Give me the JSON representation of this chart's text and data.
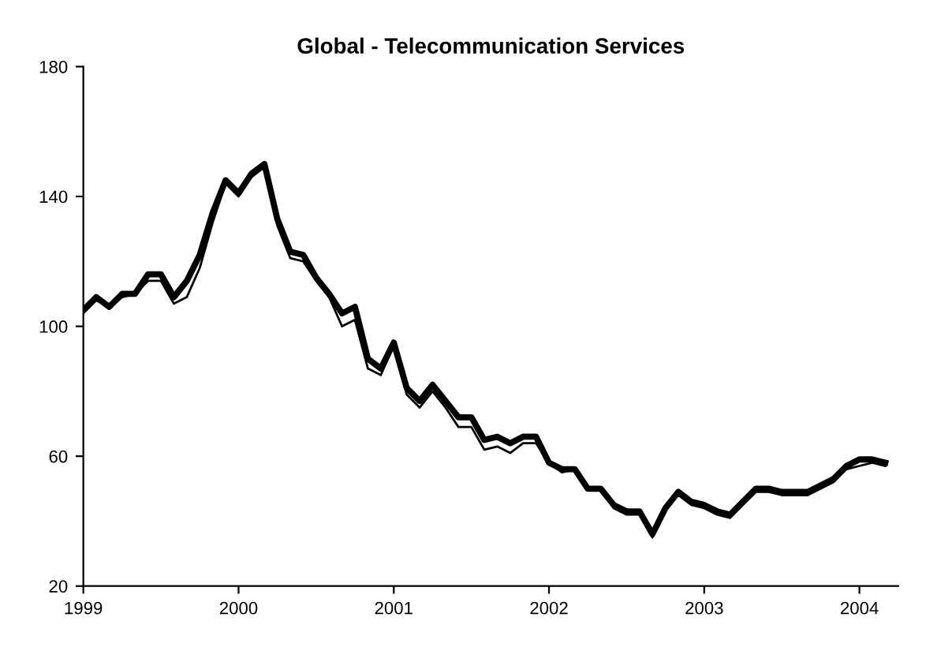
{
  "chart_data": {
    "type": "line",
    "title": "Global - Telecommunication Services",
    "x": [
      "1999-01",
      "1999-02",
      "1999-03",
      "1999-04",
      "1999-05",
      "1999-06",
      "1999-07",
      "1999-08",
      "1999-09",
      "1999-10",
      "1999-11",
      "1999-12",
      "2000-01",
      "2000-02",
      "2000-03",
      "2000-04",
      "2000-05",
      "2000-06",
      "2000-07",
      "2000-08",
      "2000-09",
      "2000-10",
      "2000-11",
      "2000-12",
      "2001-01",
      "2001-02",
      "2001-03",
      "2001-04",
      "2001-05",
      "2001-06",
      "2001-07",
      "2001-08",
      "2001-09",
      "2001-10",
      "2001-11",
      "2001-12",
      "2002-01",
      "2002-02",
      "2002-03",
      "2002-04",
      "2002-05",
      "2002-06",
      "2002-07",
      "2002-08",
      "2002-09",
      "2002-10",
      "2002-11",
      "2002-12",
      "2003-01",
      "2003-02",
      "2003-03",
      "2003-04",
      "2003-05",
      "2003-06",
      "2003-07",
      "2003-08",
      "2003-09",
      "2003-10",
      "2003-11",
      "2003-12",
      "2004-01",
      "2004-02",
      "2004-03"
    ],
    "series": [
      {
        "color": "#000000",
        "values": [
          105,
          109,
          106,
          110,
          110,
          116,
          116,
          109,
          114,
          122,
          135,
          145,
          141,
          147,
          150,
          133,
          123,
          122,
          115,
          110,
          104,
          106,
          90,
          87,
          95,
          81,
          77,
          82,
          77,
          72,
          72,
          65,
          66,
          64,
          66,
          66,
          58,
          56,
          56,
          50,
          50,
          45,
          43,
          43,
          36,
          44,
          49,
          46,
          45,
          43,
          42,
          46,
          50,
          50,
          49,
          49,
          49,
          51,
          53,
          57,
          59,
          59,
          58
        ]
      },
      {
        "color": "#000000",
        "values": [
          104,
          108,
          106,
          109,
          110,
          114,
          114,
          107,
          109,
          118,
          132,
          144,
          140,
          146,
          149,
          131,
          121,
          120,
          114,
          109,
          100,
          102,
          87,
          85,
          94,
          79,
          75,
          80,
          75,
          69,
          69,
          62,
          63,
          61,
          64,
          64,
          58,
          55,
          56,
          50,
          50,
          44,
          42,
          42,
          35,
          44,
          48,
          45,
          44,
          42,
          41,
          45,
          49,
          49,
          48,
          48,
          48,
          50,
          52,
          56,
          57,
          58,
          57
        ]
      }
    ],
    "xlim": [
      "1999-01",
      "2004-04"
    ],
    "xticks": [
      {
        "value": "1999-01",
        "label": "1999"
      },
      {
        "value": "2000-01",
        "label": "2000"
      },
      {
        "value": "2001-01",
        "label": "2001"
      },
      {
        "value": "2002-01",
        "label": "2002"
      },
      {
        "value": "2003-01",
        "label": "2003"
      },
      {
        "value": "2004-01",
        "label": "2004"
      }
    ],
    "ylim": [
      20,
      180
    ],
    "yticks": [
      20,
      60,
      100,
      140,
      180
    ],
    "grid": false,
    "marker": "none",
    "line_style": "solid"
  }
}
